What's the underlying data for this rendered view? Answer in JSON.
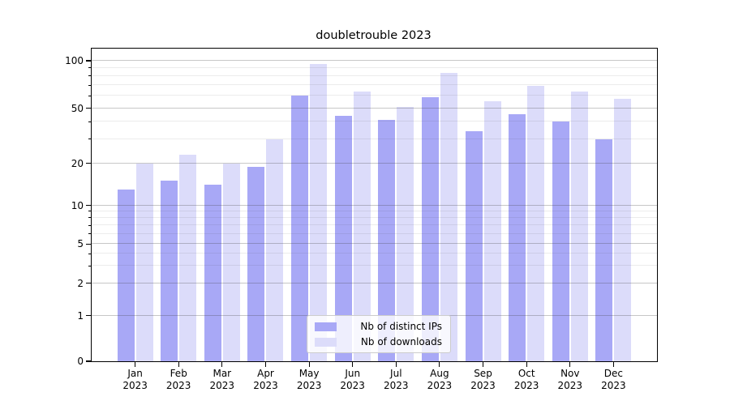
{
  "chart_data": {
    "type": "bar",
    "title": "doubletrouble 2023",
    "xlabel": "",
    "ylabel": "",
    "categories": [
      "Jan 2023",
      "Feb 2023",
      "Mar 2023",
      "Apr 2023",
      "May 2023",
      "Jun 2023",
      "Jul 2023",
      "Aug 2023",
      "Sep 2023",
      "Oct 2023",
      "Nov 2023",
      "Dec 2023"
    ],
    "series": [
      {
        "name": "Nb of distinct IPs",
        "color": "#a8a8f6",
        "values": [
          13,
          15,
          14,
          19,
          60,
          44,
          41,
          59,
          34,
          45,
          40,
          30
        ]
      },
      {
        "name": "Nb of downloads",
        "color": "#dcdcfa",
        "values": [
          20,
          23,
          20,
          30,
          95,
          64,
          51,
          84,
          55,
          69,
          64,
          57
        ]
      }
    ],
    "yscale": "asinh-like (logarithmic above 1, linear 0-1)",
    "y_ticks": [
      0,
      1,
      2,
      5,
      10,
      20,
      50,
      100
    ],
    "y_minor_ticks": [
      3,
      4,
      6,
      7,
      8,
      9,
      30,
      40,
      60,
      70,
      80,
      90
    ],
    "ylim": [
      0,
      120
    ],
    "grid": "horizontal major and minor gridlines drawn over bars",
    "legend": {
      "position": "lower center inside plot",
      "items": [
        "Nb of distinct IPs",
        "Nb of downloads"
      ]
    }
  }
}
